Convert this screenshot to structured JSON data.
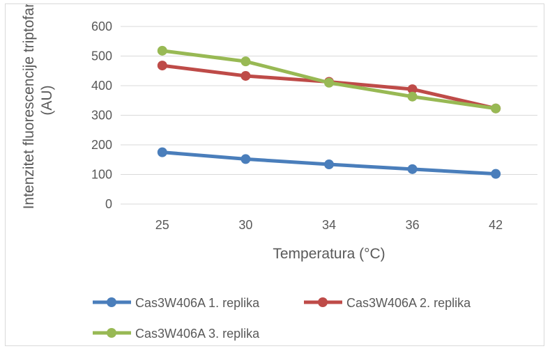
{
  "chart_data": {
    "type": "line",
    "title": "",
    "xlabel": "Temperatura (°C)",
    "ylabel_lines": [
      "Intenzitet fluorescencije triptofana",
      "(AU)"
    ],
    "categories": [
      "25",
      "30",
      "34",
      "36",
      "42"
    ],
    "ylim": [
      0,
      600
    ],
    "yticks": [
      0,
      100,
      200,
      300,
      400,
      500,
      600
    ],
    "ytick_labels": [
      "0",
      "100",
      "200",
      "300",
      "400",
      "500",
      "600"
    ],
    "grid": true,
    "legend_position": "bottom",
    "series": [
      {
        "name": "Cas3W406A 1. replika",
        "color": "#4a7ebb",
        "values": [
          175,
          152,
          134,
          118,
          102
        ]
      },
      {
        "name": "Cas3W406A 2. replika",
        "color": "#be4b48",
        "values": [
          468,
          433,
          413,
          388,
          323
        ]
      },
      {
        "name": "Cas3W406A 3. replika",
        "color": "#98b954",
        "values": [
          518,
          482,
          410,
          363,
          323
        ]
      }
    ]
  }
}
